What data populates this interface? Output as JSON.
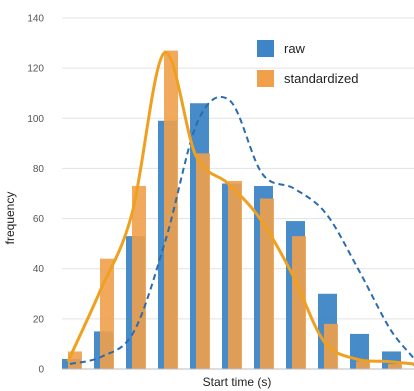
{
  "chart_data": {
    "type": "bar",
    "title": "",
    "xlabel": "Start time (s)",
    "ylabel": "frequency",
    "ylim": [
      0,
      140
    ],
    "yticks": [
      0,
      20,
      40,
      60,
      80,
      100,
      120,
      140
    ],
    "grid": true,
    "legend_position": "top-right",
    "series": [
      {
        "name": "raw",
        "color": "#3d85c6",
        "values": [
          4,
          15,
          53,
          99,
          106,
          74,
          73,
          59,
          30,
          14,
          7,
          2
        ],
        "curve": [
          2,
          5,
          15,
          52,
          99,
          107,
          78,
          72,
          62,
          40,
          16,
          4,
          1
        ],
        "curve_style": "dashed"
      },
      {
        "name": "standardized",
        "color": "#f0a04b",
        "values": [
          7,
          44,
          73,
          127,
          86,
          75,
          68,
          53,
          18,
          3,
          2
        ],
        "curve": [
          3,
          31,
          62,
          126,
          85,
          74,
          60,
          38,
          11,
          4,
          3,
          2
        ],
        "curve_style": "solid"
      }
    ]
  }
}
